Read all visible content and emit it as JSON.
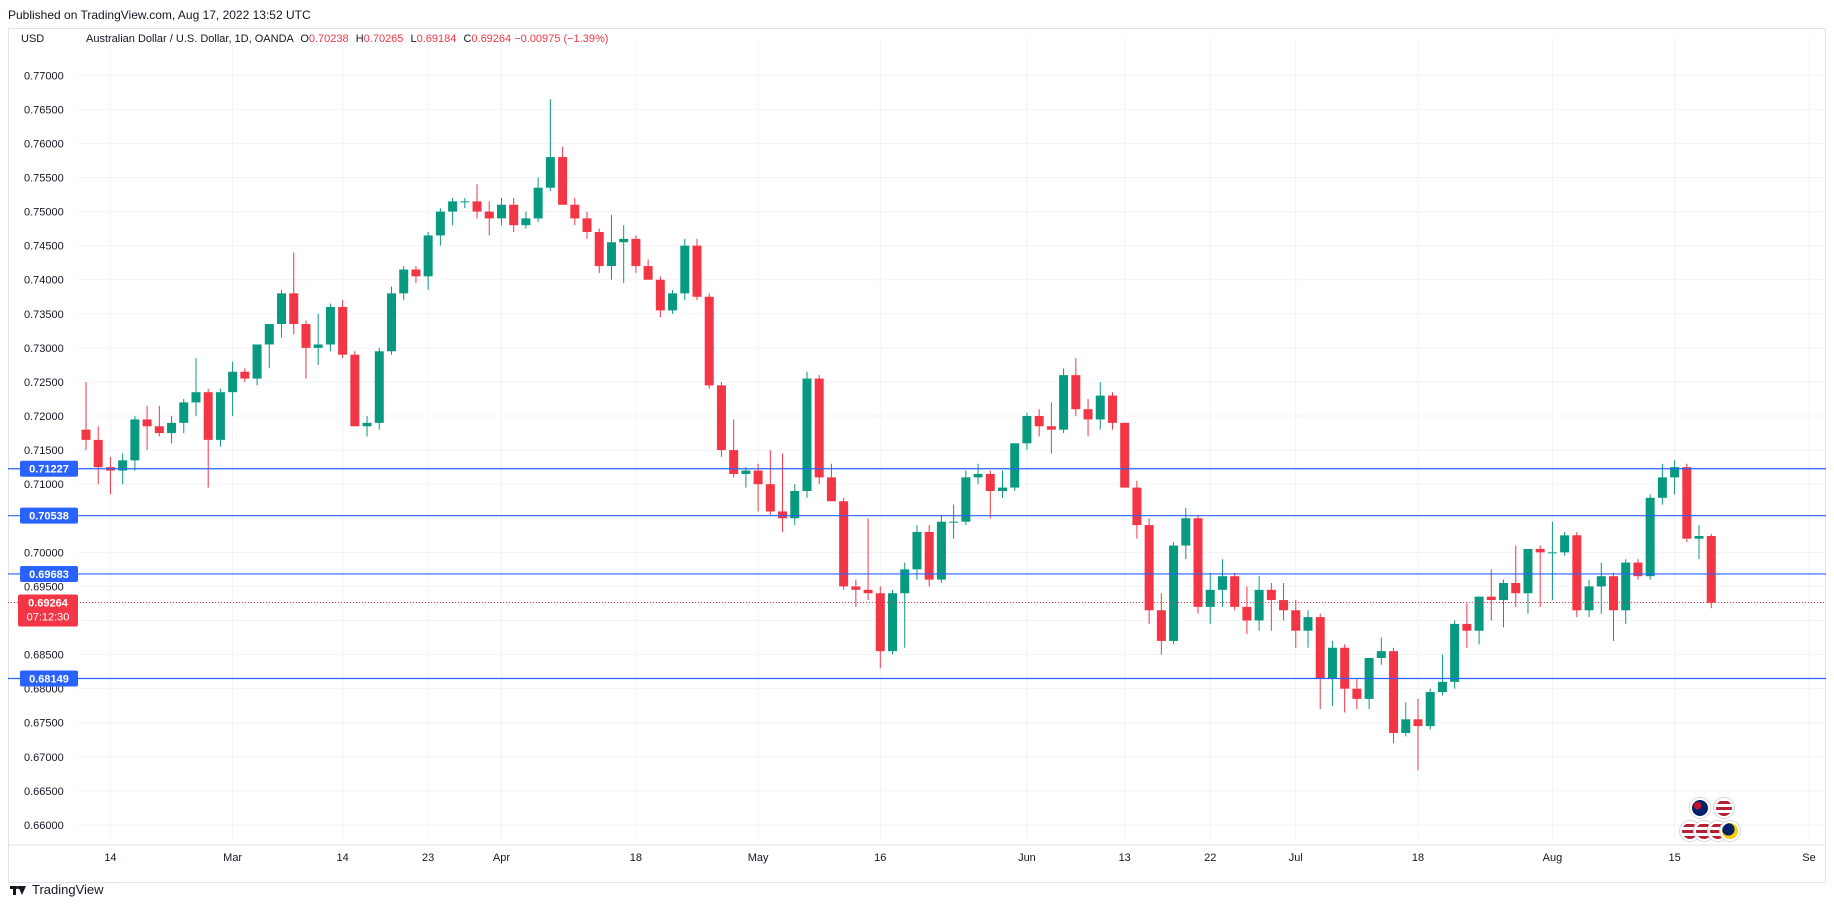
{
  "header": {
    "published": "Published on TradingView.com, Aug 17, 2022 13:52 UTC"
  },
  "legend": {
    "currency": "USD",
    "symbol": "Australian Dollar / U.S. Dollar, 1D, OANDA",
    "open_label": "O",
    "open": "0.70238",
    "high_label": "H",
    "high": "0.70265",
    "low_label": "L",
    "low": "0.69184",
    "close_label": "C",
    "close": "0.69264",
    "change": "−0.00975 (−1.39%)"
  },
  "footer": {
    "brand": "TradingView"
  },
  "colors": {
    "up": "#089981",
    "down": "#f23645",
    "hline": "#2962ff",
    "grid": "#f0f3fa",
    "axis_text": "#131722",
    "price_label_bg": "#f23645"
  },
  "chart_data": {
    "type": "candlestick",
    "ylim": [
      0.6575,
      0.774
    ],
    "y_ticks": [
      "0.77000",
      "0.76500",
      "0.76000",
      "0.75500",
      "0.75000",
      "0.74500",
      "0.74000",
      "0.73500",
      "0.73000",
      "0.72500",
      "0.72000",
      "0.71500",
      "0.71000",
      "0.70500",
      "0.70000",
      "0.69500",
      "0.69000",
      "0.68500",
      "0.68000",
      "0.67500",
      "0.67000",
      "0.66500",
      "0.66000"
    ],
    "x_ticks": [
      {
        "label": "14",
        "i": 2
      },
      {
        "label": "Mar",
        "i": 12
      },
      {
        "label": "14",
        "i": 21
      },
      {
        "label": "23",
        "i": 28
      },
      {
        "label": "Apr",
        "i": 34
      },
      {
        "label": "18",
        "i": 45
      },
      {
        "label": "May",
        "i": 55
      },
      {
        "label": "16",
        "i": 65
      },
      {
        "label": "Jun",
        "i": 77
      },
      {
        "label": "13",
        "i": 85
      },
      {
        "label": "22",
        "i": 92
      },
      {
        "label": "Jul",
        "i": 99
      },
      {
        "label": "18",
        "i": 109
      },
      {
        "label": "Aug",
        "i": 120
      },
      {
        "label": "15",
        "i": 130
      },
      {
        "label": "Se",
        "i": 141
      }
    ],
    "horizontal_lines": [
      {
        "price": 0.71227,
        "label": "0.71227"
      },
      {
        "price": 0.70538,
        "label": "0.70538"
      },
      {
        "price": 0.69683,
        "label": "0.69683"
      },
      {
        "price": 0.68149,
        "label": "0.68149"
      }
    ],
    "last_price": {
      "price": 0.69264,
      "label": "0.69264",
      "countdown": "07:12:30"
    },
    "candles": [
      [
        0.718,
        0.725,
        0.715,
        0.7165
      ],
      [
        0.7165,
        0.7185,
        0.71,
        0.7125
      ],
      [
        0.7125,
        0.714,
        0.7085,
        0.712
      ],
      [
        0.712,
        0.7145,
        0.71,
        0.7135
      ],
      [
        0.7135,
        0.72,
        0.712,
        0.7195
      ],
      [
        0.7195,
        0.7215,
        0.715,
        0.7185
      ],
      [
        0.7185,
        0.7215,
        0.717,
        0.7175
      ],
      [
        0.7175,
        0.72,
        0.716,
        0.719
      ],
      [
        0.719,
        0.7225,
        0.7175,
        0.722
      ],
      [
        0.722,
        0.7285,
        0.72,
        0.7235
      ],
      [
        0.7235,
        0.724,
        0.7095,
        0.7165
      ],
      [
        0.7165,
        0.724,
        0.7155,
        0.7235
      ],
      [
        0.7235,
        0.728,
        0.72,
        0.7265
      ],
      [
        0.7265,
        0.727,
        0.725,
        0.7255
      ],
      [
        0.7255,
        0.73,
        0.7245,
        0.7305
      ],
      [
        0.7305,
        0.733,
        0.727,
        0.7335
      ],
      [
        0.7335,
        0.7385,
        0.7315,
        0.738
      ],
      [
        0.738,
        0.744,
        0.732,
        0.7335
      ],
      [
        0.7335,
        0.734,
        0.7255,
        0.73
      ],
      [
        0.73,
        0.735,
        0.7275,
        0.7305
      ],
      [
        0.7305,
        0.7365,
        0.7295,
        0.736
      ],
      [
        0.736,
        0.737,
        0.7285,
        0.729
      ],
      [
        0.729,
        0.7295,
        0.7185,
        0.7185
      ],
      [
        0.7185,
        0.72,
        0.717,
        0.719
      ],
      [
        0.719,
        0.73,
        0.718,
        0.7295
      ],
      [
        0.7295,
        0.739,
        0.729,
        0.738
      ],
      [
        0.738,
        0.742,
        0.737,
        0.7415
      ],
      [
        0.7415,
        0.742,
        0.7395,
        0.7405
      ],
      [
        0.7405,
        0.747,
        0.7385,
        0.7465
      ],
      [
        0.7465,
        0.7505,
        0.745,
        0.75
      ],
      [
        0.75,
        0.752,
        0.748,
        0.7515
      ],
      [
        0.7515,
        0.752,
        0.7505,
        0.7515
      ],
      [
        0.7515,
        0.754,
        0.749,
        0.75
      ],
      [
        0.75,
        0.7515,
        0.7465,
        0.749
      ],
      [
        0.749,
        0.752,
        0.748,
        0.751
      ],
      [
        0.751,
        0.752,
        0.747,
        0.748
      ],
      [
        0.748,
        0.75,
        0.7475,
        0.749
      ],
      [
        0.749,
        0.755,
        0.7485,
        0.7535
      ],
      [
        0.7535,
        0.7665,
        0.753,
        0.758
      ],
      [
        0.758,
        0.7595,
        0.751,
        0.751
      ],
      [
        0.751,
        0.752,
        0.748,
        0.749
      ],
      [
        0.749,
        0.75,
        0.746,
        0.747
      ],
      [
        0.747,
        0.7475,
        0.741,
        0.742
      ],
      [
        0.742,
        0.7495,
        0.74,
        0.7455
      ],
      [
        0.7455,
        0.748,
        0.7395,
        0.746
      ],
      [
        0.746,
        0.7465,
        0.741,
        0.742
      ],
      [
        0.742,
        0.743,
        0.74,
        0.74
      ],
      [
        0.74,
        0.7405,
        0.7345,
        0.7355
      ],
      [
        0.7355,
        0.7385,
        0.735,
        0.738
      ],
      [
        0.738,
        0.746,
        0.737,
        0.745
      ],
      [
        0.745,
        0.746,
        0.737,
        0.7375
      ],
      [
        0.7375,
        0.738,
        0.724,
        0.7245
      ],
      [
        0.7245,
        0.725,
        0.714,
        0.715
      ],
      [
        0.715,
        0.7195,
        0.711,
        0.7115
      ],
      [
        0.7115,
        0.7125,
        0.7095,
        0.712
      ],
      [
        0.712,
        0.713,
        0.706,
        0.71
      ],
      [
        0.71,
        0.715,
        0.7055,
        0.706
      ],
      [
        0.706,
        0.7145,
        0.703,
        0.705
      ],
      [
        0.705,
        0.71,
        0.704,
        0.709
      ],
      [
        0.709,
        0.7265,
        0.708,
        0.7255
      ],
      [
        0.7255,
        0.726,
        0.71,
        0.711
      ],
      [
        0.711,
        0.713,
        0.708,
        0.7075
      ],
      [
        0.7075,
        0.708,
        0.6945,
        0.695
      ],
      [
        0.695,
        0.696,
        0.692,
        0.6945
      ],
      [
        0.6945,
        0.705,
        0.693,
        0.694
      ],
      [
        0.694,
        0.695,
        0.683,
        0.6855
      ],
      [
        0.6855,
        0.6945,
        0.685,
        0.694
      ],
      [
        0.694,
        0.6985,
        0.686,
        0.6975
      ],
      [
        0.6975,
        0.704,
        0.696,
        0.703
      ],
      [
        0.703,
        0.704,
        0.695,
        0.696
      ],
      [
        0.696,
        0.7055,
        0.6955,
        0.7045
      ],
      [
        0.7045,
        0.707,
        0.702,
        0.7045
      ],
      [
        0.7045,
        0.712,
        0.704,
        0.711
      ],
      [
        0.711,
        0.713,
        0.71,
        0.7115
      ],
      [
        0.7115,
        0.712,
        0.705,
        0.709
      ],
      [
        0.709,
        0.712,
        0.708,
        0.7095
      ],
      [
        0.7095,
        0.716,
        0.709,
        0.716
      ],
      [
        0.716,
        0.7205,
        0.715,
        0.72
      ],
      [
        0.72,
        0.721,
        0.717,
        0.7185
      ],
      [
        0.7185,
        0.722,
        0.7145,
        0.718
      ],
      [
        0.718,
        0.727,
        0.7175,
        0.726
      ],
      [
        0.726,
        0.7285,
        0.72,
        0.721
      ],
      [
        0.721,
        0.7225,
        0.717,
        0.7195
      ],
      [
        0.7195,
        0.725,
        0.718,
        0.723
      ],
      [
        0.723,
        0.7235,
        0.718,
        0.719
      ],
      [
        0.719,
        0.719,
        0.71,
        0.7095
      ],
      [
        0.7095,
        0.7105,
        0.702,
        0.704
      ],
      [
        0.704,
        0.705,
        0.6895,
        0.6915
      ],
      [
        0.6915,
        0.694,
        0.685,
        0.687
      ],
      [
        0.687,
        0.7015,
        0.6865,
        0.701
      ],
      [
        0.701,
        0.7065,
        0.699,
        0.705
      ],
      [
        0.705,
        0.7055,
        0.691,
        0.692
      ],
      [
        0.692,
        0.697,
        0.6895,
        0.6945
      ],
      [
        0.6945,
        0.699,
        0.692,
        0.6965
      ],
      [
        0.6965,
        0.697,
        0.6915,
        0.692
      ],
      [
        0.692,
        0.695,
        0.688,
        0.69
      ],
      [
        0.69,
        0.6965,
        0.6885,
        0.6945
      ],
      [
        0.6945,
        0.6955,
        0.6885,
        0.693
      ],
      [
        0.693,
        0.6955,
        0.69,
        0.6915
      ],
      [
        0.6915,
        0.693,
        0.686,
        0.6885
      ],
      [
        0.6885,
        0.6915,
        0.686,
        0.6905
      ],
      [
        0.6905,
        0.691,
        0.677,
        0.6815
      ],
      [
        0.6815,
        0.687,
        0.6775,
        0.686
      ],
      [
        0.686,
        0.6865,
        0.6765,
        0.68
      ],
      [
        0.68,
        0.6815,
        0.677,
        0.6785
      ],
      [
        0.6785,
        0.6845,
        0.677,
        0.6845
      ],
      [
        0.6845,
        0.6875,
        0.6835,
        0.6855
      ],
      [
        0.6855,
        0.686,
        0.672,
        0.6735
      ],
      [
        0.6735,
        0.678,
        0.673,
        0.6755
      ],
      [
        0.6755,
        0.6785,
        0.668,
        0.6745
      ],
      [
        0.6745,
        0.68,
        0.674,
        0.6795
      ],
      [
        0.6795,
        0.685,
        0.679,
        0.681
      ],
      [
        0.681,
        0.69,
        0.68,
        0.6895
      ],
      [
        0.6895,
        0.6925,
        0.686,
        0.6885
      ],
      [
        0.6885,
        0.6935,
        0.6865,
        0.6935
      ],
      [
        0.6935,
        0.6975,
        0.69,
        0.693
      ],
      [
        0.693,
        0.696,
        0.689,
        0.6955
      ],
      [
        0.6955,
        0.701,
        0.692,
        0.694
      ],
      [
        0.694,
        0.7005,
        0.691,
        0.7005
      ],
      [
        0.7005,
        0.701,
        0.692,
        0.7
      ],
      [
        0.7,
        0.7045,
        0.693,
        0.7
      ],
      [
        0.7,
        0.703,
        0.6995,
        0.7025
      ],
      [
        0.7025,
        0.703,
        0.6905,
        0.6915
      ],
      [
        0.6915,
        0.696,
        0.6905,
        0.695
      ],
      [
        0.695,
        0.6985,
        0.691,
        0.6965
      ],
      [
        0.6965,
        0.697,
        0.687,
        0.6915
      ],
      [
        0.6915,
        0.699,
        0.6895,
        0.6985
      ],
      [
        0.6985,
        0.699,
        0.696,
        0.6965
      ],
      [
        0.6965,
        0.7085,
        0.696,
        0.708
      ],
      [
        0.708,
        0.713,
        0.707,
        0.711
      ],
      [
        0.711,
        0.7135,
        0.7085,
        0.7125
      ],
      [
        0.7125,
        0.713,
        0.7015,
        0.702
      ],
      [
        0.702,
        0.704,
        0.699,
        0.7024
      ],
      [
        0.7024,
        0.7027,
        0.6918,
        0.6926
      ]
    ]
  }
}
